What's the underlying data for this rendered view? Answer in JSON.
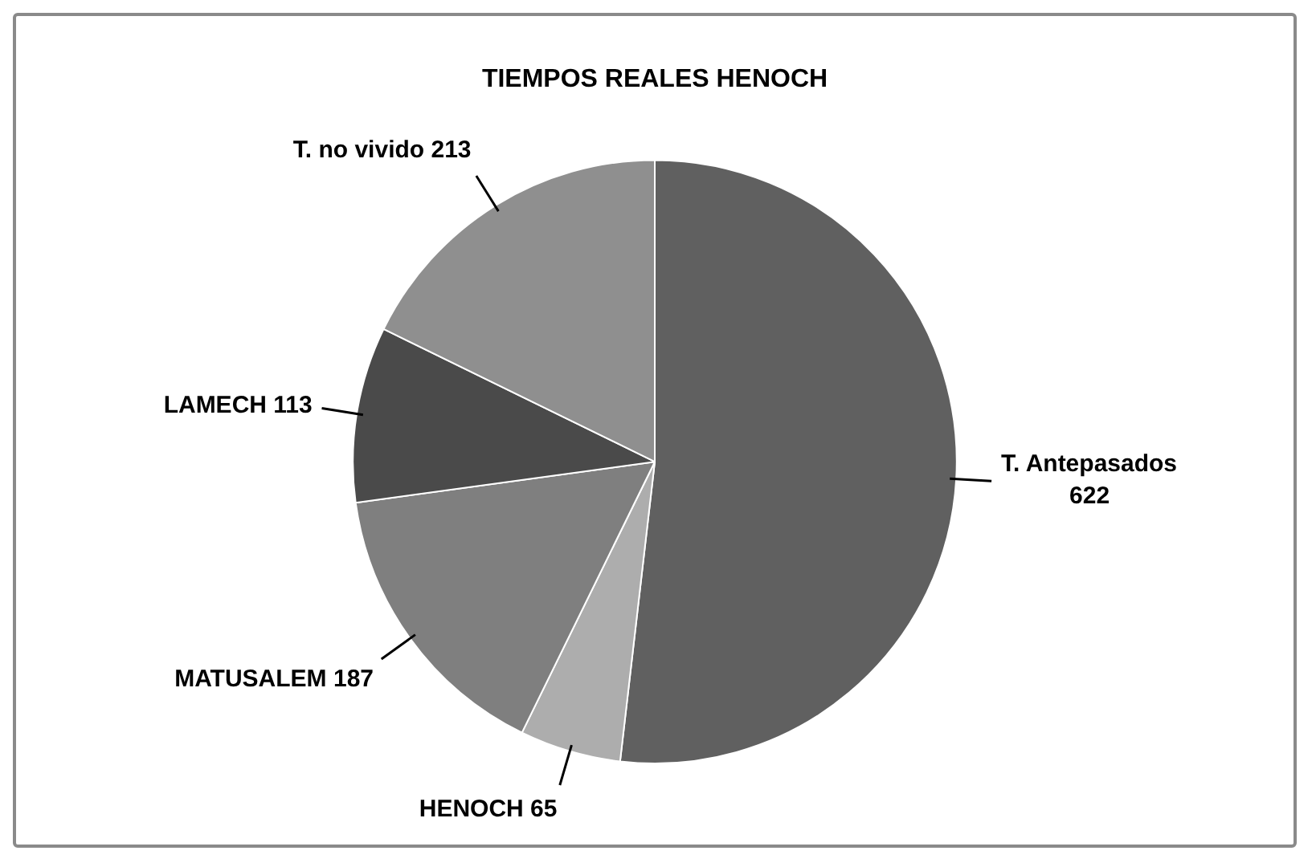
{
  "chart_data": {
    "type": "pie",
    "title": "TIEMPOS REALES HENOCH",
    "categories": [
      "T. Antepasados",
      "HENOCH",
      "MATUSALEM",
      "LAMECH",
      "T. no vivido"
    ],
    "values": [
      622,
      65,
      187,
      113,
      213
    ],
    "colors": [
      "#606060",
      "#adadad",
      "#7f7f7f",
      "#4a4a4a",
      "#8f8f8f"
    ],
    "data_labels": true
  }
}
